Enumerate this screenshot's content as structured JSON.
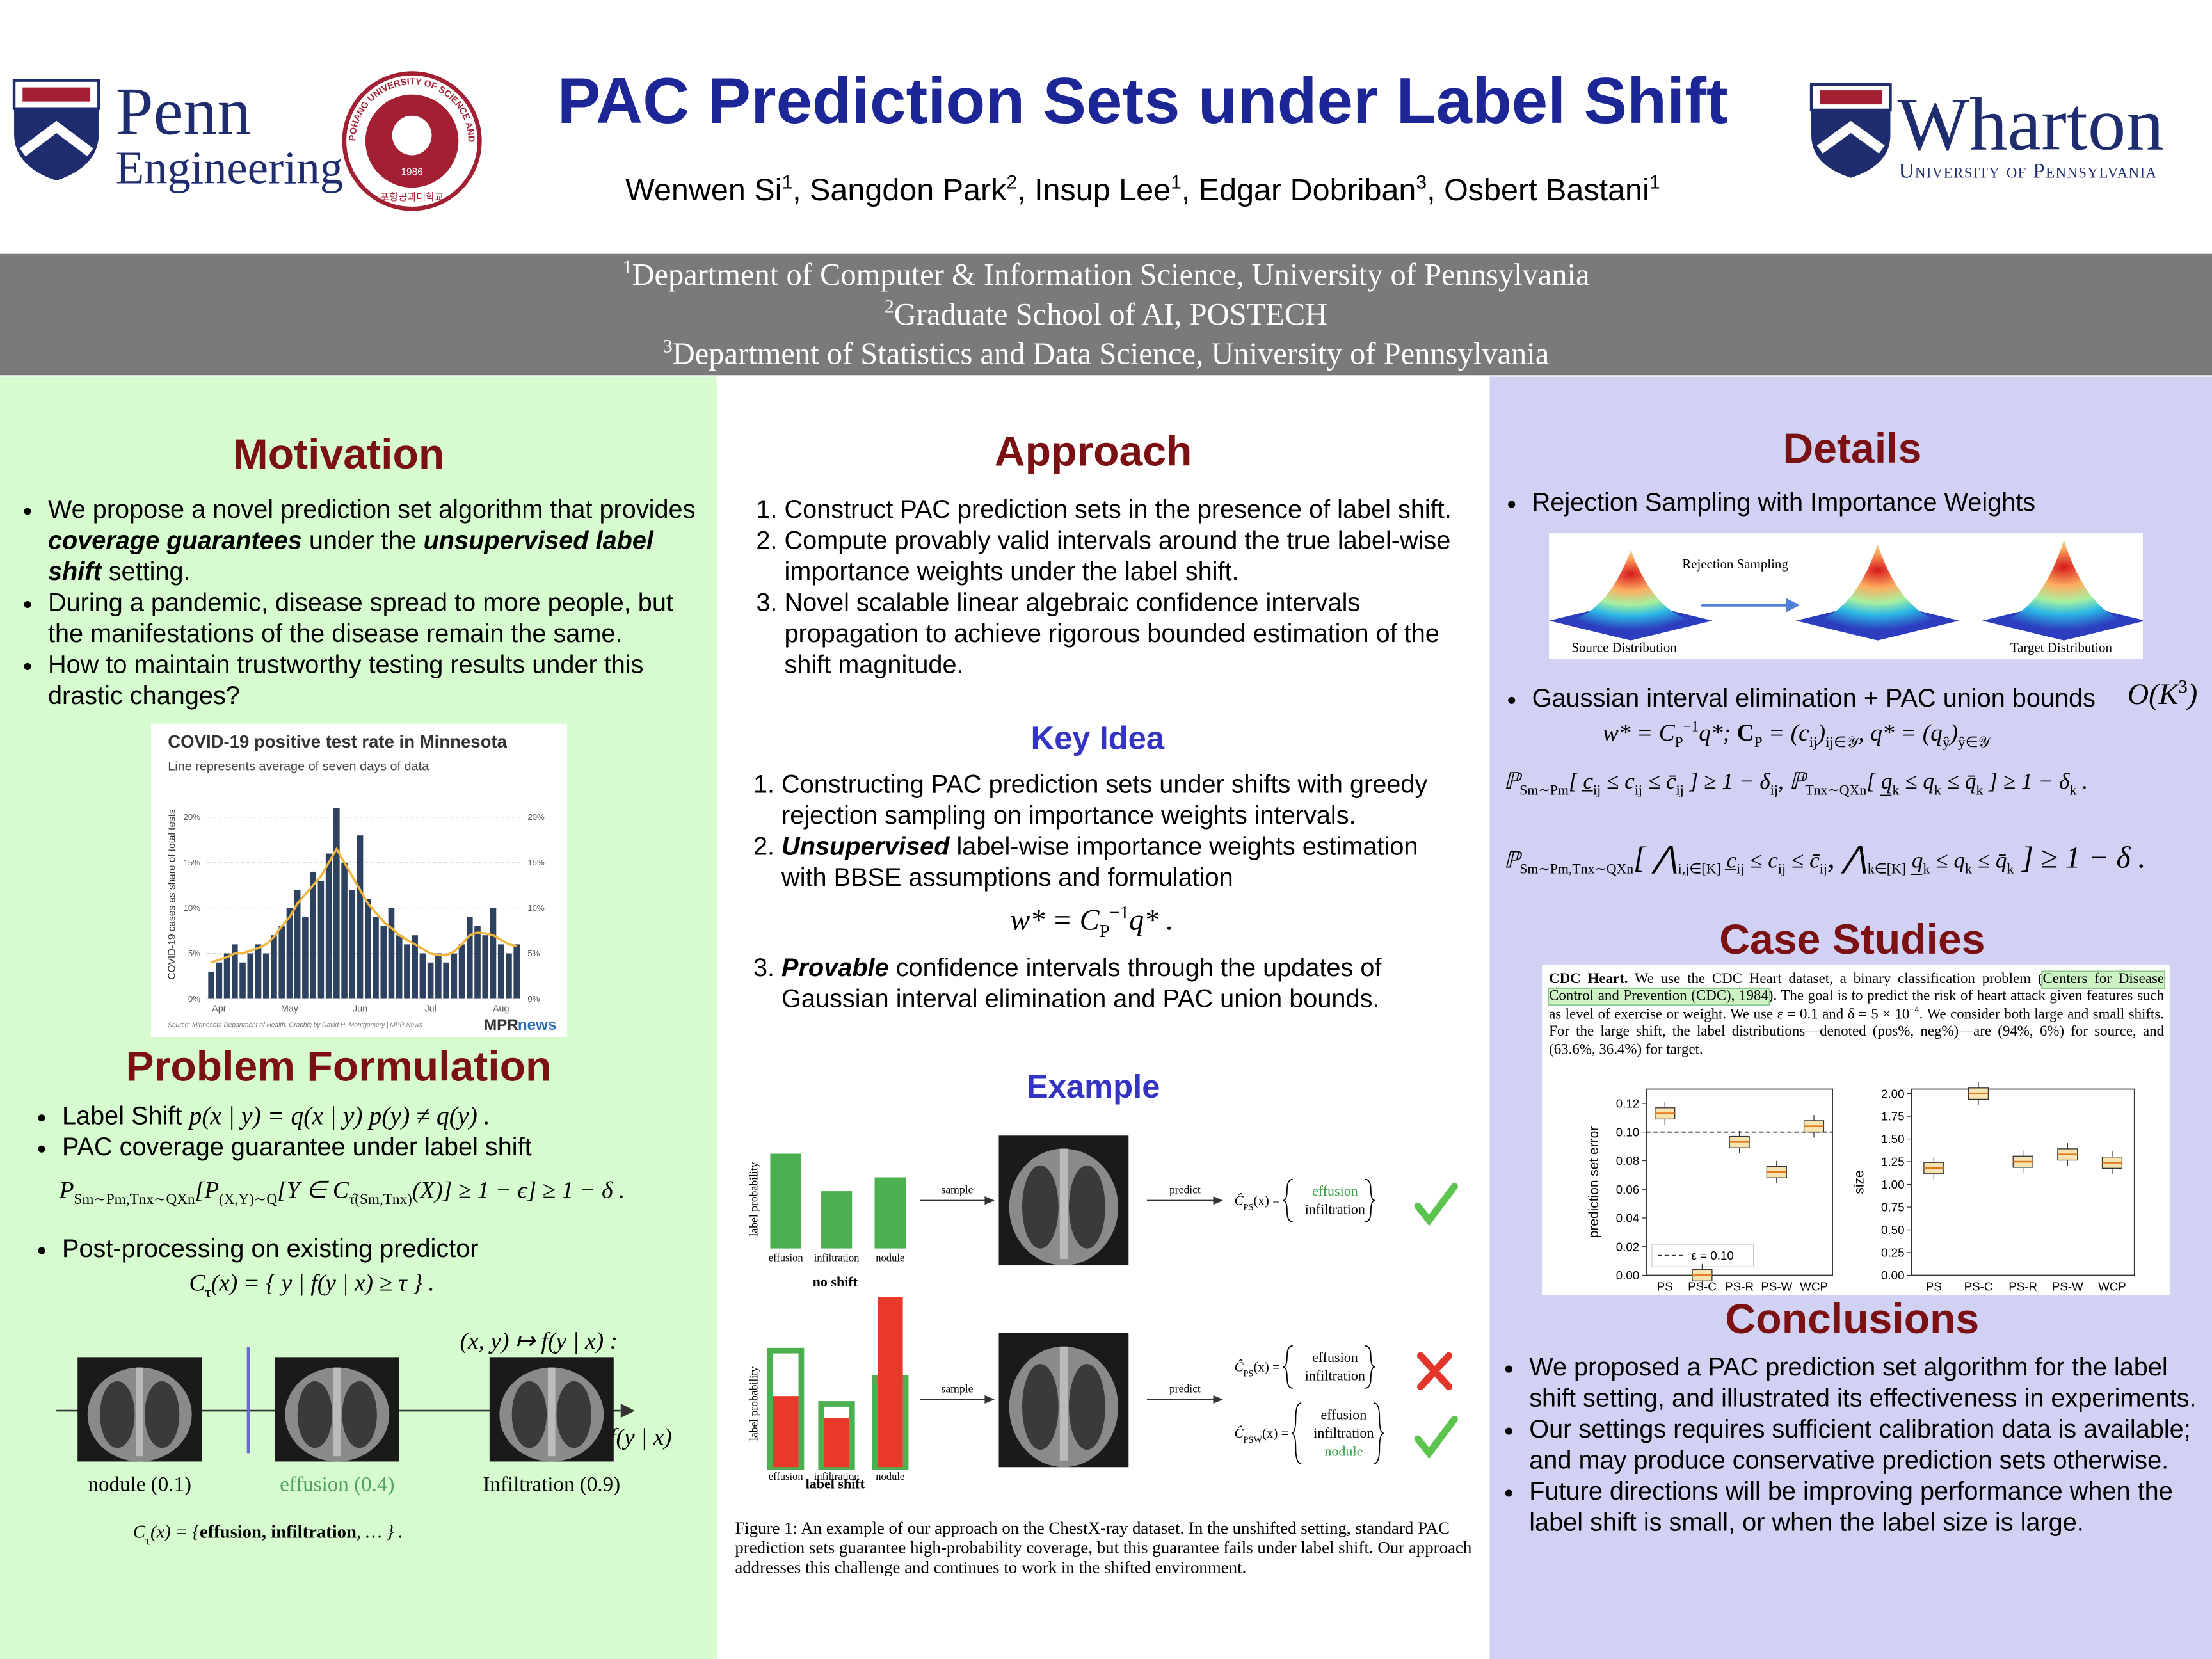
{
  "header": {
    "title": "PAC Prediction Sets under Label Shift",
    "authors": [
      {
        "t": "Wenwen Si"
      },
      {
        "t": "1",
        "s": "sup"
      },
      {
        "t": ", Sangdon Park"
      },
      {
        "t": "2",
        "s": "sup"
      },
      {
        "t": ", Insup Lee"
      },
      {
        "t": "1",
        "s": "sup"
      },
      {
        "t": ", Edgar Dobriban"
      },
      {
        "t": "3",
        "s": "sup"
      },
      {
        "t": ", Osbert Bastani"
      },
      {
        "t": "1",
        "s": "sup"
      }
    ],
    "affiliations": [
      [
        {
          "t": "1",
          "s": "sup"
        },
        {
          "t": "Department of Computer & Information Science, University of Pennsylvania"
        }
      ],
      [
        {
          "t": "2",
          "s": "sup"
        },
        {
          "t": "Graduate School of AI, POSTECH"
        }
      ],
      [
        {
          "t": "3",
          "s": "sup"
        },
        {
          "t": "Department of Statistics and Data Science, University of Pennsylvania"
        }
      ]
    ],
    "logos": {
      "penn": "Penn",
      "engineering": "Engineering",
      "postech_ring": "POHANG UNIVERSITY OF SCIENCE AND TECHNOLOGY",
      "postech_year": "1986",
      "postech_korean": "포항공과대학교",
      "wharton": "Wharton",
      "wharton_sub": "University of Pennsylvania"
    }
  },
  "motivation": {
    "heading": "Motivation",
    "bullets": [
      [
        {
          "t": "We propose a novel prediction set algorithm that provides "
        },
        {
          "t": "coverage guarantees",
          "s": "bi"
        },
        {
          "t": " under the "
        },
        {
          "t": "unsupervised label shift",
          "s": "bi"
        },
        {
          "t": " setting."
        }
      ],
      [
        {
          "t": "During a pandemic, disease spread to more people, but the manifestations of the disease remain the same."
        }
      ],
      [
        {
          "t": "How to maintain trustworthy testing results under this drastic changes?"
        }
      ]
    ],
    "covid_chart": {
      "type": "bar",
      "title": "COVID-19 positive test rate in Minnesota",
      "subtitle": "Line represents average of seven days of data",
      "y_label": "COVID-19 cases as share of total tests",
      "source": "Source: Minnesota Department of Health. Graphic by David H. Montgomery | MPR News",
      "brand": [
        "MPR",
        "news"
      ],
      "categories": [
        null,
        "Apr",
        null,
        null,
        null,
        null,
        null,
        null,
        null,
        null,
        "May",
        null,
        null,
        null,
        null,
        null,
        null,
        null,
        null,
        "Jun",
        null,
        null,
        null,
        null,
        null,
        null,
        null,
        null,
        "Jul",
        null,
        null,
        null,
        null,
        null,
        null,
        null,
        null,
        "Aug",
        null,
        null
      ],
      "series": [
        {
          "type": "bar",
          "color": "#2d4260",
          "values": [
            3,
            4,
            5,
            6,
            4,
            5,
            6,
            5,
            7,
            8,
            10,
            12,
            9,
            14,
            13,
            16,
            21,
            15,
            12,
            18,
            11,
            9,
            8,
            10,
            7,
            6,
            7,
            5,
            4,
            5,
            4,
            5,
            6,
            9,
            8,
            7,
            10,
            6,
            5,
            6
          ]
        },
        {
          "type": "line",
          "color": "#f1b43c",
          "values": [
            4,
            4.3,
            4.6,
            5,
            5,
            5.3,
            5.6,
            6,
            6.8,
            8,
            9,
            10.5,
            11.5,
            12.5,
            13.5,
            15,
            16.5,
            15,
            13.5,
            12,
            10.5,
            9.5,
            8.5,
            7.8,
            7,
            6.5,
            6,
            5.5,
            5,
            4.8,
            4.8,
            5.2,
            6,
            7,
            7.3,
            7.2,
            7,
            6.5,
            6,
            5.8
          ]
        }
      ],
      "ylim": [
        0,
        23
      ],
      "yticks": [
        {
          "value": 0,
          "label": "0%"
        },
        {
          "value": 5,
          "label": "5%"
        },
        {
          "value": 10,
          "label": "10%"
        },
        {
          "value": 15,
          "label": "15%"
        },
        {
          "value": 20,
          "label": "20%"
        }
      ],
      "grid": true
    }
  },
  "problem": {
    "heading": "Problem Formulation",
    "bullets": [
      [
        {
          "t": "Label Shift  "
        },
        {
          "t": "p(x | y) = q(x | y)    p(y) ≠ q(y) .",
          "s": "m"
        }
      ],
      [
        {
          "t": "PAC coverage guarantee under label shift"
        }
      ]
    ],
    "pac_formula": [
      {
        "t": "P",
        "s": "m"
      },
      {
        "t": "Sm∼Pm,Tnx∼QXn",
        "s": "sub"
      },
      {
        "t": "[P",
        "s": "m"
      },
      {
        "t": "(X,Y)∼Q",
        "s": "sub"
      },
      {
        "t": "[Y ∈ C",
        "s": "m"
      },
      {
        "t": "τ̂(Sm,Tnx)",
        "s": "sub"
      },
      {
        "t": "(X)] ≥ 1 − ϵ] ≥ 1 − δ .",
        "s": "m"
      }
    ],
    "bullets2": [
      [
        {
          "t": "Post-processing on existing predictor"
        }
      ]
    ],
    "post_formula": [
      {
        "t": "C",
        "s": "m"
      },
      {
        "t": "τ",
        "s": "sub"
      },
      {
        "t": "(x) = { y | f(y | x) ≥ τ } .",
        "s": "m"
      }
    ],
    "diagram": {
      "map_label": "(x, y) ↦ f(y | x) :",
      "axis_label": "f(y | x)",
      "images": [
        {
          "label": "nodule (0.1)"
        },
        {
          "label": "effusion (0.4)",
          "color": "#4fa05a"
        },
        {
          "label": "Infiltration (0.9)"
        }
      ],
      "set_formula": [
        {
          "t": "C",
          "s": "m"
        },
        {
          "t": "τ",
          "s": "sub"
        },
        {
          "t": "(x) = {",
          "s": "m"
        },
        {
          "t": "effusion, infiltration",
          "s": "b"
        },
        {
          "t": ", … } .",
          "s": "m"
        }
      ]
    }
  },
  "approach": {
    "heading": "Approach",
    "steps": [
      [
        {
          "t": "Construct PAC prediction sets in the presence of label shift."
        }
      ],
      [
        {
          "t": "Compute provably valid intervals around the true label-wise importance weights under the label shift."
        }
      ],
      [
        {
          "t": "Novel scalable linear algebraic confidence intervals propagation to achieve rigorous bounded estimation of the shift magnitude."
        }
      ]
    ],
    "key_heading": "Key Idea",
    "key_steps": [
      [
        {
          "t": "Constructing PAC prediction sets under shifts with greedy rejection sampling on importance weights intervals."
        }
      ],
      [
        {
          "t": "Unsupervised",
          "s": "bi"
        },
        {
          "t": " label-wise importance weights estimation with BBSE assumptions and formulation"
        }
      ],
      [
        {
          "t": "Provable",
          "s": "bi"
        },
        {
          "t": " confidence intervals through the updates of Gaussian interval elimination and PAC union bounds."
        }
      ]
    ],
    "w_formula": [
      {
        "t": "w* = C",
        "s": "m"
      },
      {
        "t": "P",
        "s": "sub"
      },
      {
        "t": "−1",
        "s": "sup"
      },
      {
        "t": "q* .",
        "s": "m"
      }
    ],
    "example_heading": "Example",
    "example_figure": {
      "type": "bar",
      "y_label": "label probability",
      "categories": [
        "effusion",
        "infiltration",
        "nodule"
      ],
      "ylim": [
        0,
        1
      ],
      "no_shift": {
        "label": "no shift",
        "color": "#4caf50",
        "values": [
          0.48,
          0.29,
          0.36
        ]
      },
      "label_shift": {
        "label": "label shift",
        "color": "#e8392a",
        "outline": "#4caf50",
        "values": [
          0.36,
          0.25,
          0.86
        ],
        "outline_values": [
          0.59,
          0.32,
          0.45
        ]
      },
      "sample": "sample",
      "predict": "predict",
      "outputs_no_shift": [
        {
          "pre": "Ĉ",
          "sub": "PS",
          "post": "(x) =",
          "items": [
            {
              "t": "effusion",
              "s": "g"
            },
            {
              "t": "infiltration"
            }
          ],
          "verdict": "check"
        }
      ],
      "outputs_shift": [
        {
          "pre": "Ĉ",
          "sub": "PS",
          "post": "(x) =",
          "items": [
            {
              "t": "effusion"
            },
            {
              "t": "infiltration"
            }
          ],
          "verdict": "cross"
        },
        {
          "pre": "Ĉ",
          "sub": "PSW",
          "post": "(x) =",
          "items": [
            {
              "t": "effusion"
            },
            {
              "t": "infiltration"
            },
            {
              "t": "nodule",
              "s": "g"
            }
          ],
          "verdict": "check"
        }
      ],
      "caption": "Figure 1: An example of our approach on the ChestX-ray dataset. In the unshifted setting, standard PAC prediction sets guarantee high-probability coverage, but this guarantee fails under label shift. Our approach addresses this challenge and continues to work in the shifted environment."
    }
  },
  "details": {
    "heading": "Details",
    "bullet1": "Rejection Sampling with Importance Weights",
    "gauss": {
      "source": "Source Distribution",
      "arrow": "Rejection Sampling",
      "target": "Target Distribution"
    },
    "bullet2": "Gaussian interval elimination + PAC union bounds",
    "complexity": [
      {
        "t": "O(K",
        "s": "m"
      },
      {
        "t": "3",
        "s": "sup"
      },
      {
        "t": ")",
        "s": "m"
      }
    ],
    "formulas": [
      [
        {
          "t": "w* = C",
          "s": "m"
        },
        {
          "t": "P",
          "s": "sub"
        },
        {
          "t": "−1",
          "s": "sup"
        },
        {
          "t": "q*;     ",
          "s": "m"
        },
        {
          "t": "C",
          "s": "b"
        },
        {
          "t": "P",
          "s": "sub"
        },
        {
          "t": " = (c",
          "s": "m"
        },
        {
          "t": "ij",
          "s": "sub"
        },
        {
          "t": ")",
          "s": "m"
        },
        {
          "t": "ij∈𝒴",
          "s": "sub"
        },
        {
          "t": ", q* = (q",
          "s": "m"
        },
        {
          "t": "ŷ",
          "s": "sub"
        },
        {
          "t": ")",
          "s": "m"
        },
        {
          "t": "ŷ∈𝒴",
          "s": "sub"
        }
      ],
      [
        {
          "t": "ℙ",
          "s": "m"
        },
        {
          "t": "Sm∼Pm",
          "s": "sub"
        },
        {
          "t": "[ c̲",
          "s": "m"
        },
        {
          "t": "ij",
          "s": "sub"
        },
        {
          "t": " ≤ c",
          "s": "m"
        },
        {
          "t": "ij",
          "s": "sub"
        },
        {
          "t": " ≤ c̄",
          "s": "m"
        },
        {
          "t": "ij",
          "s": "sub"
        },
        {
          "t": " ] ≥ 1 − δ",
          "s": "m"
        },
        {
          "t": "ij",
          "s": "sub"
        },
        {
          "t": ",     ℙ",
          "s": "m"
        },
        {
          "t": "Tnx∼QXn",
          "s": "sub"
        },
        {
          "t": "[ q̲",
          "s": "m"
        },
        {
          "t": "k",
          "s": "sub"
        },
        {
          "t": " ≤ q",
          "s": "m"
        },
        {
          "t": "k",
          "s": "sub"
        },
        {
          "t": " ≤ q̄",
          "s": "m"
        },
        {
          "t": "k",
          "s": "sub"
        },
        {
          "t": " ] ≥ 1 − δ",
          "s": "m"
        },
        {
          "t": "k",
          "s": "sub"
        },
        {
          "t": " .",
          "s": "m"
        }
      ],
      [
        {
          "t": "ℙ",
          "s": "m"
        },
        {
          "t": "Sm∼Pm,Tnx∼QXn",
          "s": "sub"
        },
        {
          "t": "[ ⋀",
          "s": "big"
        },
        {
          "t": "i,j∈[K]",
          "s": "sub"
        },
        {
          "t": " c̲",
          "s": "m"
        },
        {
          "t": "ij",
          "s": "sub"
        },
        {
          "t": " ≤ c",
          "s": "m"
        },
        {
          "t": "ij",
          "s": "sub"
        },
        {
          "t": " ≤ c̄",
          "s": "m"
        },
        {
          "t": "ij",
          "s": "sub"
        },
        {
          "t": ",  ⋀",
          "s": "big"
        },
        {
          "t": "k∈[K]",
          "s": "sub"
        },
        {
          "t": " q̲",
          "s": "m"
        },
        {
          "t": "k",
          "s": "sub"
        },
        {
          "t": " ≤ q",
          "s": "m"
        },
        {
          "t": "k",
          "s": "sub"
        },
        {
          "t": " ≤ q̄",
          "s": "m"
        },
        {
          "t": "k",
          "s": "sub"
        },
        {
          "t": " ] ≥ 1 − δ .",
          "s": "big"
        }
      ]
    ],
    "case_heading": "Case Studies",
    "excerpt": [
      {
        "t": "CDC Heart.",
        "s": "b"
      },
      {
        "t": " We use the CDC Heart dataset, a binary classification problem ("
      },
      {
        "t": "Centers for Disease Control and Prevention (CDC), 1984",
        "s": "hl"
      },
      {
        "t": "). The goal is to predict the risk of heart attack given features such as level of exercise or weight. We use ε = 0.1 and δ = 5 × 10"
      },
      {
        "t": "−4",
        "s": "sup"
      },
      {
        "t": ". We consider both large and small shifts. For the large shift, the label distributions—denoted (pos%, neg%)—are (94%, 6%) for source, and (63.6%, 36.4%) for target."
      }
    ],
    "error_chart": {
      "type": "box",
      "y_label": "prediction set error",
      "categories": [
        "PS",
        "PS-C",
        "PS-R",
        "PS-W",
        "WCP"
      ],
      "values": [
        0.113,
        0.0,
        0.093,
        0.072,
        0.104
      ],
      "ylim": [
        0,
        0.13
      ],
      "yticks": [
        {
          "value": 0,
          "label": "0.00"
        },
        {
          "value": 0.02,
          "label": "0.02"
        },
        {
          "value": 0.04,
          "label": "0.04"
        },
        {
          "value": 0.06,
          "label": "0.06"
        },
        {
          "value": 0.08,
          "label": "0.08"
        },
        {
          "value": 0.1,
          "label": "0.10"
        },
        {
          "value": 0.12,
          "label": "0.12"
        }
      ],
      "epsilon": 0.1,
      "epsilon_label": "ε = 0.10"
    },
    "size_chart": {
      "type": "box",
      "y_label": "size",
      "categories": [
        "PS",
        "PS-C",
        "PS-R",
        "PS-W",
        "WCP"
      ],
      "values": [
        1.18,
        2.0,
        1.25,
        1.33,
        1.24
      ],
      "ylim": [
        0,
        2.05
      ],
      "yticks": [
        {
          "value": 0,
          "label": "0.00"
        },
        {
          "value": 0.25,
          "label": "0.25"
        },
        {
          "value": 0.5,
          "label": "0.50"
        },
        {
          "value": 0.75,
          "label": "0.75"
        },
        {
          "value": 1,
          "label": "1.00"
        },
        {
          "value": 1.25,
          "label": "1.25"
        },
        {
          "value": 1.5,
          "label": "1.50"
        },
        {
          "value": 1.75,
          "label": "1.75"
        },
        {
          "value": 2,
          "label": "2.00"
        }
      ]
    },
    "conclusions_heading": "Conclusions",
    "conclusions": [
      [
        {
          "t": "We proposed a PAC prediction set algorithm for the label shift setting, and illustrated its effectiveness in experiments."
        }
      ],
      [
        {
          "t": "Our settings requires sufficient calibration data is available; and may produce conservative prediction sets otherwise."
        }
      ],
      [
        {
          "t": "Future directions will be improving performance when the label shift is small, or when the label size is large."
        }
      ]
    ]
  }
}
